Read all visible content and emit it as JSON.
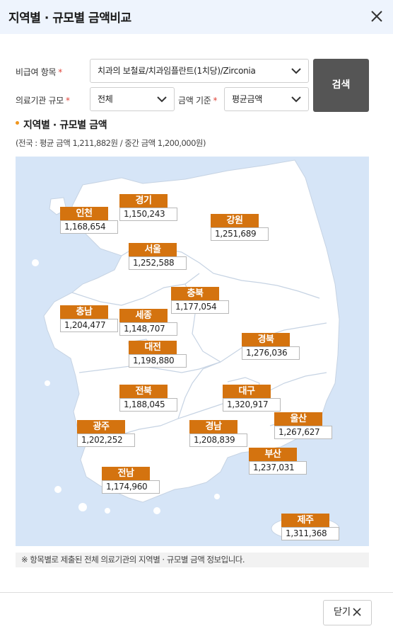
{
  "header": {
    "title": "지역별 · 규모별 금액비교"
  },
  "form": {
    "item_label": "비급여 항목",
    "item_value": "치과의 보철료/치과임플란트(1치당)/Zirconia",
    "scale_label": "의료기관 규모",
    "scale_value": "전체",
    "basis_label": "금액 기준",
    "basis_value": "평균금액",
    "required_mark": "*",
    "search_label": "검색"
  },
  "section": {
    "title": "지역별 · 규모별 금액",
    "subtitle": "(전국 : 평균 금액 1,211,882원 / 중간 금액 1,200,000원)"
  },
  "regions": [
    {
      "name": "인천",
      "value": "1,168,654"
    },
    {
      "name": "경기",
      "value": "1,150,243"
    },
    {
      "name": "강원",
      "value": "1,251,689"
    },
    {
      "name": "서울",
      "value": "1,252,588"
    },
    {
      "name": "충북",
      "value": "1,177,054"
    },
    {
      "name": "충남",
      "value": "1,204,477"
    },
    {
      "name": "세종",
      "value": "1,148,707"
    },
    {
      "name": "경북",
      "value": "1,276,036"
    },
    {
      "name": "대전",
      "value": "1,198,880"
    },
    {
      "name": "전북",
      "value": "1,188,045"
    },
    {
      "name": "대구",
      "value": "1,320,917"
    },
    {
      "name": "광주",
      "value": "1,202,252"
    },
    {
      "name": "경남",
      "value": "1,208,839"
    },
    {
      "name": "울산",
      "value": "1,267,627"
    },
    {
      "name": "부산",
      "value": "1,237,031"
    },
    {
      "name": "전남",
      "value": "1,174,960"
    },
    {
      "name": "제주",
      "value": "1,311,368"
    }
  ],
  "note": "※ 항목별로 제출된 전체 의료기관의 지역별 · 규모별 금액 정보입니다.",
  "footer": {
    "close_label": "닫기"
  },
  "colors": {
    "accent": "#d4730f",
    "map_bg": "#d6e5f7",
    "search_btn": "#555555",
    "header_bg": "#eef4fd"
  }
}
